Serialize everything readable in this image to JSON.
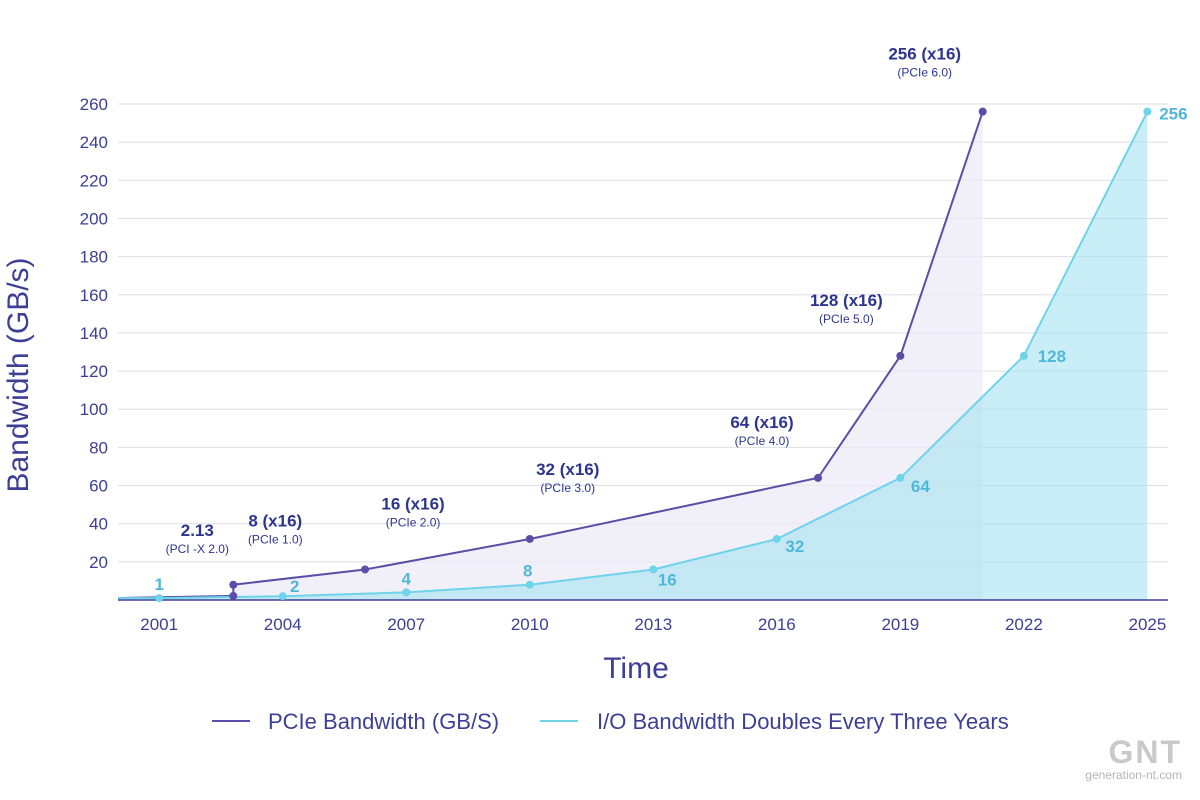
{
  "chart_data": {
    "type": "line",
    "ylabel": "Bandwidth (GB/s)",
    "xlabel": "Time",
    "ylim": [
      0,
      260
    ],
    "y_ticks": [
      20,
      40,
      60,
      80,
      100,
      120,
      140,
      160,
      180,
      200,
      220,
      240,
      260
    ],
    "x_ticks": [
      "2001",
      "2004",
      "2007",
      "2010",
      "2013",
      "2016",
      "2019",
      "2022",
      "2025"
    ],
    "grid": "horizontal",
    "legend_position": "bottom",
    "series": [
      {
        "name": "PCIe Bandwidth (GB/S)",
        "color": "#5b4ea6",
        "points": [
          {
            "x": 2002.8,
            "y": 2.13,
            "label": "2.13",
            "sub": "(PCI -X 2.0)"
          },
          {
            "x": 2002.8,
            "y": 8,
            "label": "8 (x16)",
            "sub": "(PCIe 1.0)"
          },
          {
            "x": 2006,
            "y": 16,
            "label": "16 (x16)",
            "sub": "(PCIe 2.0)"
          },
          {
            "x": 2010,
            "y": 32,
            "label": "32 (x16)",
            "sub": "(PCIe 3.0)"
          },
          {
            "x": 2017,
            "y": 64,
            "label": "64 (x16)",
            "sub": "(PCIe 4.0)"
          },
          {
            "x": 2019,
            "y": 128,
            "label": "128 (x16)",
            "sub": "(PCIe 5.0)"
          },
          {
            "x": 2021,
            "y": 256,
            "label": "256 (x16)",
            "sub": "(PCIe 6.0)"
          }
        ]
      },
      {
        "name": "I/O Bandwidth Doubles Every Three Years",
        "color": "#6fd3ea",
        "points": [
          {
            "x": 2001,
            "y": 1,
            "label": "1"
          },
          {
            "x": 2004,
            "y": 2,
            "label": "2"
          },
          {
            "x": 2007,
            "y": 4,
            "label": "4"
          },
          {
            "x": 2010,
            "y": 8,
            "label": "8"
          },
          {
            "x": 2013,
            "y": 16,
            "label": "16"
          },
          {
            "x": 2016,
            "y": 32,
            "label": "32"
          },
          {
            "x": 2019,
            "y": 64,
            "label": "64"
          },
          {
            "x": 2022,
            "y": 128,
            "label": "128"
          },
          {
            "x": 2025,
            "y": 256,
            "label": "256"
          }
        ]
      }
    ]
  },
  "watermark": {
    "logo": "GNT",
    "site": "generation-nt.com"
  }
}
